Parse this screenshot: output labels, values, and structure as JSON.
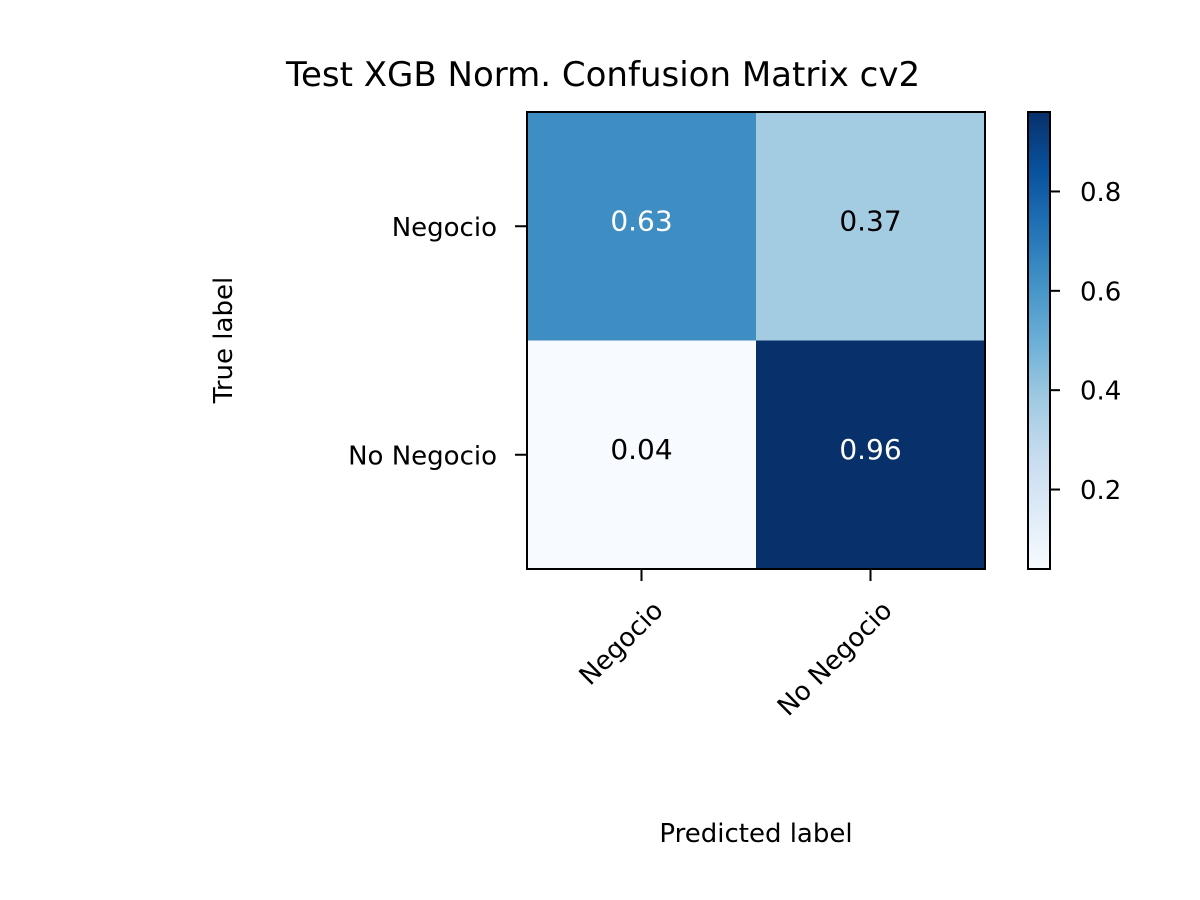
{
  "chart_data": {
    "type": "heatmap",
    "title": "Test XGB Norm. Confusion Matrix cv2",
    "xlabel": "Predicted label",
    "ylabel": "True label",
    "x_categories": [
      "Negocio",
      "No Negocio"
    ],
    "y_categories": [
      "Negocio",
      "No Negocio"
    ],
    "values": [
      [
        0.63,
        0.37
      ],
      [
        0.04,
        0.96
      ]
    ],
    "colormap": "Blues",
    "colorbar": {
      "min": 0.04,
      "max": 0.96,
      "ticks": [
        0.2,
        0.4,
        0.6,
        0.8
      ],
      "tick_labels": [
        "0.2",
        "0.4",
        "0.6",
        "0.8"
      ]
    }
  }
}
